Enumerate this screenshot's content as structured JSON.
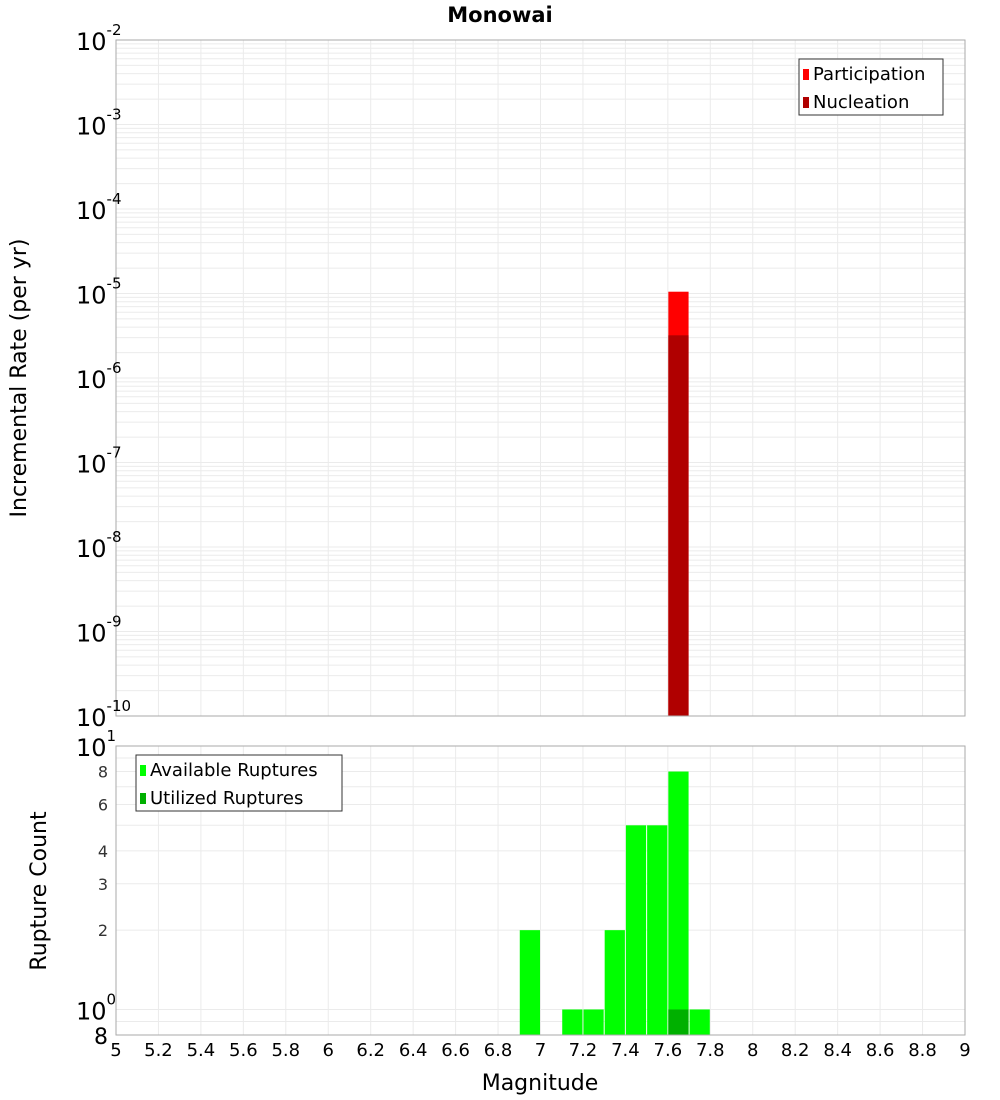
{
  "title": "Monowai",
  "chart_data": [
    {
      "type": "bar",
      "title": "Monowai",
      "xlabel": "Magnitude",
      "ylabel": "Incremental Rate (per yr)",
      "xlim": [
        5,
        9
      ],
      "ylim": [
        1e-10,
        0.01
      ],
      "yscale": "log",
      "grid": true,
      "legend_position": "top-right",
      "bin_width": 0.1,
      "ytick_labels": [
        {
          "value": 0.01,
          "base": "10",
          "exp": "-2"
        },
        {
          "value": 0.001,
          "base": "10",
          "exp": "-3"
        },
        {
          "value": 0.0001,
          "base": "10",
          "exp": "-4"
        },
        {
          "value": 1e-05,
          "base": "10",
          "exp": "-5"
        },
        {
          "value": 1e-06,
          "base": "10",
          "exp": "-6"
        },
        {
          "value": 1e-07,
          "base": "10",
          "exp": "-7"
        },
        {
          "value": 1e-08,
          "base": "10",
          "exp": "-8"
        },
        {
          "value": 1e-09,
          "base": "10",
          "exp": "-9"
        },
        {
          "value": 1e-10,
          "base": "10",
          "exp": "-10"
        }
      ],
      "series": [
        {
          "name": "Participation",
          "color": "#ff0000",
          "x": [
            7.65
          ],
          "values": [
            1.05e-05
          ]
        },
        {
          "name": "Nucleation",
          "color": "#b00000",
          "x": [
            7.65
          ],
          "values": [
            3.2e-06
          ]
        }
      ]
    },
    {
      "type": "bar",
      "xlabel": "Magnitude",
      "ylabel": "Rupture Count",
      "xlim": [
        5,
        9
      ],
      "ylim": [
        0.8,
        10
      ],
      "yscale": "log",
      "grid": true,
      "legend_position": "top-left",
      "bin_width": 0.1,
      "xtick_labels": [
        "5",
        "5.2",
        "5.4",
        "5.6",
        "5.8",
        "6",
        "6.2",
        "6.4",
        "6.6",
        "6.8",
        "7",
        "7.2",
        "7.4",
        "7.6",
        "7.8",
        "8",
        "8.2",
        "8.4",
        "8.6",
        "8.8",
        "9"
      ],
      "ytick_labels": [
        {
          "value": 10,
          "base": "10",
          "exp": "1",
          "major": true
        },
        {
          "value": 8,
          "base": "8",
          "exp": "",
          "major": false
        },
        {
          "value": 6,
          "base": "6",
          "exp": "",
          "major": false
        },
        {
          "value": 4,
          "base": "4",
          "exp": "",
          "major": false
        },
        {
          "value": 3,
          "base": "3",
          "exp": "",
          "major": false
        },
        {
          "value": 2,
          "base": "2",
          "exp": "",
          "major": false
        },
        {
          "value": 1,
          "base": "10",
          "exp": "0",
          "major": true
        },
        {
          "value": 0.8,
          "base": "8",
          "exp": "",
          "major": true
        }
      ],
      "series": [
        {
          "name": "Available Ruptures",
          "color": "#00ff00",
          "x": [
            6.95,
            7.15,
            7.25,
            7.35,
            7.45,
            7.55,
            7.65,
            7.75
          ],
          "values": [
            2,
            1,
            1,
            2,
            5,
            5,
            8,
            1
          ]
        },
        {
          "name": "Utilized Ruptures",
          "color": "#00b000",
          "x": [
            7.65
          ],
          "values": [
            1
          ]
        }
      ]
    }
  ]
}
